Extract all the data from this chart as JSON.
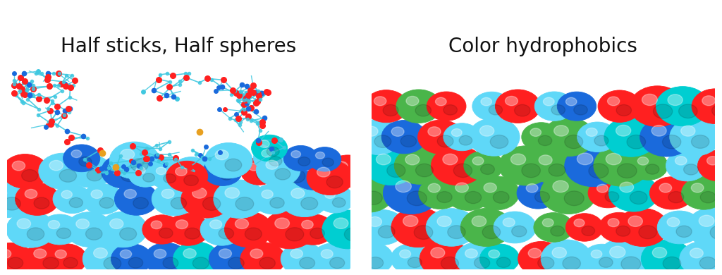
{
  "title_left": "Half sticks, Half spheres",
  "title_right": "Color hydrophobics",
  "bg_color": "#2a2f3e",
  "figure_bg": "#ffffff",
  "title_fontsize": 20,
  "title_color": "#111111",
  "colors_left_sphere": [
    "#5fd8f8",
    "#ff2020",
    "#1a6adc",
    "#00ced1"
  ],
  "colors_right_sphere": [
    "#5fd8f8",
    "#ff2020",
    "#1a6adc",
    "#4ab54a",
    "#00ced1"
  ],
  "stick_color": "#40c8e0",
  "oxygen_color": "#ff2020",
  "nitrogen_color": "#1a6adc",
  "sulfur_color": "#e8a020"
}
